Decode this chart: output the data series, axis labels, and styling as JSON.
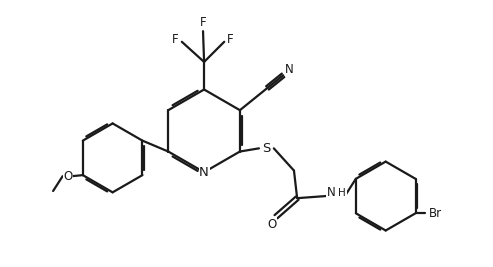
{
  "bg_color": "#ffffff",
  "line_color": "#1a1a1a",
  "line_width": 1.6,
  "font_size": 8.5,
  "figsize": [
    4.93,
    2.67
  ],
  "dpi": 100,
  "xlim": [
    0,
    9.3
  ],
  "ylim": [
    0,
    5.0
  ]
}
